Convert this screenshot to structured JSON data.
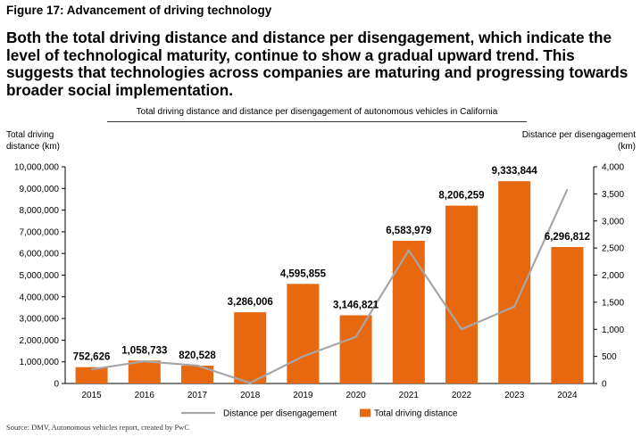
{
  "figure_label": "Figure 17: Advancement of driving technology",
  "headline": "Both the total driving distance and distance per disengagement, which indicate the level of technological maturity, continue to show a gradual upward trend. This suggests that technologies across companies are maturing and progressing towards broader social implementation.",
  "source": "Source: DMV, Autonomous vehicles report, created by PwC",
  "chart_data": {
    "type": "bar",
    "title": "Total driving distance and distance per disengagement of autonomous vehicles in California",
    "ylabel_left_lines": [
      "Total driving",
      "distance (km)"
    ],
    "ylabel_right_lines": [
      "Distance per disengagement",
      "(km)"
    ],
    "categories": [
      "2015",
      "2016",
      "2017",
      "2018",
      "2019",
      "2020",
      "2021",
      "2022",
      "2023",
      "2024"
    ],
    "ylim_left": [
      0,
      10000000
    ],
    "ylim_right": [
      0,
      4000
    ],
    "yticks_left": [
      "0",
      "1,000,000",
      "2,000,000",
      "3,000,000",
      "4,000,000",
      "5,000,000",
      "6,000,000",
      "7,000,000",
      "8,000,000",
      "9,000,000",
      "10,000,000"
    ],
    "yticks_right": [
      "0",
      "500",
      "1,000",
      "1,500",
      "2,000",
      "2,500",
      "3,000",
      "3,500",
      "4,000"
    ],
    "series": [
      {
        "name": "Total driving distance",
        "type": "bar",
        "axis": "left",
        "color": "#E8680F",
        "values": [
          752626,
          1058733,
          820528,
          3286006,
          4595855,
          3146821,
          6583979,
          8206259,
          9333844,
          6296812
        ],
        "labels": [
          "752,626",
          "1,058,733",
          "820,528",
          "3,286,006",
          "4,595,855",
          "3,146,821",
          "6,583,979",
          "8,206,259",
          "9,333,844",
          "6,296,812"
        ]
      },
      {
        "name": "Distance per disengagement",
        "type": "line",
        "axis": "right",
        "color": "#A6A6A6",
        "values": [
          260,
          410,
          330,
          10,
          500,
          860,
          2460,
          1000,
          1420,
          3580
        ]
      }
    ],
    "legend": [
      "Distance per disengagement",
      "Total driving distance"
    ],
    "legend_position": "bottom",
    "grid": false
  }
}
